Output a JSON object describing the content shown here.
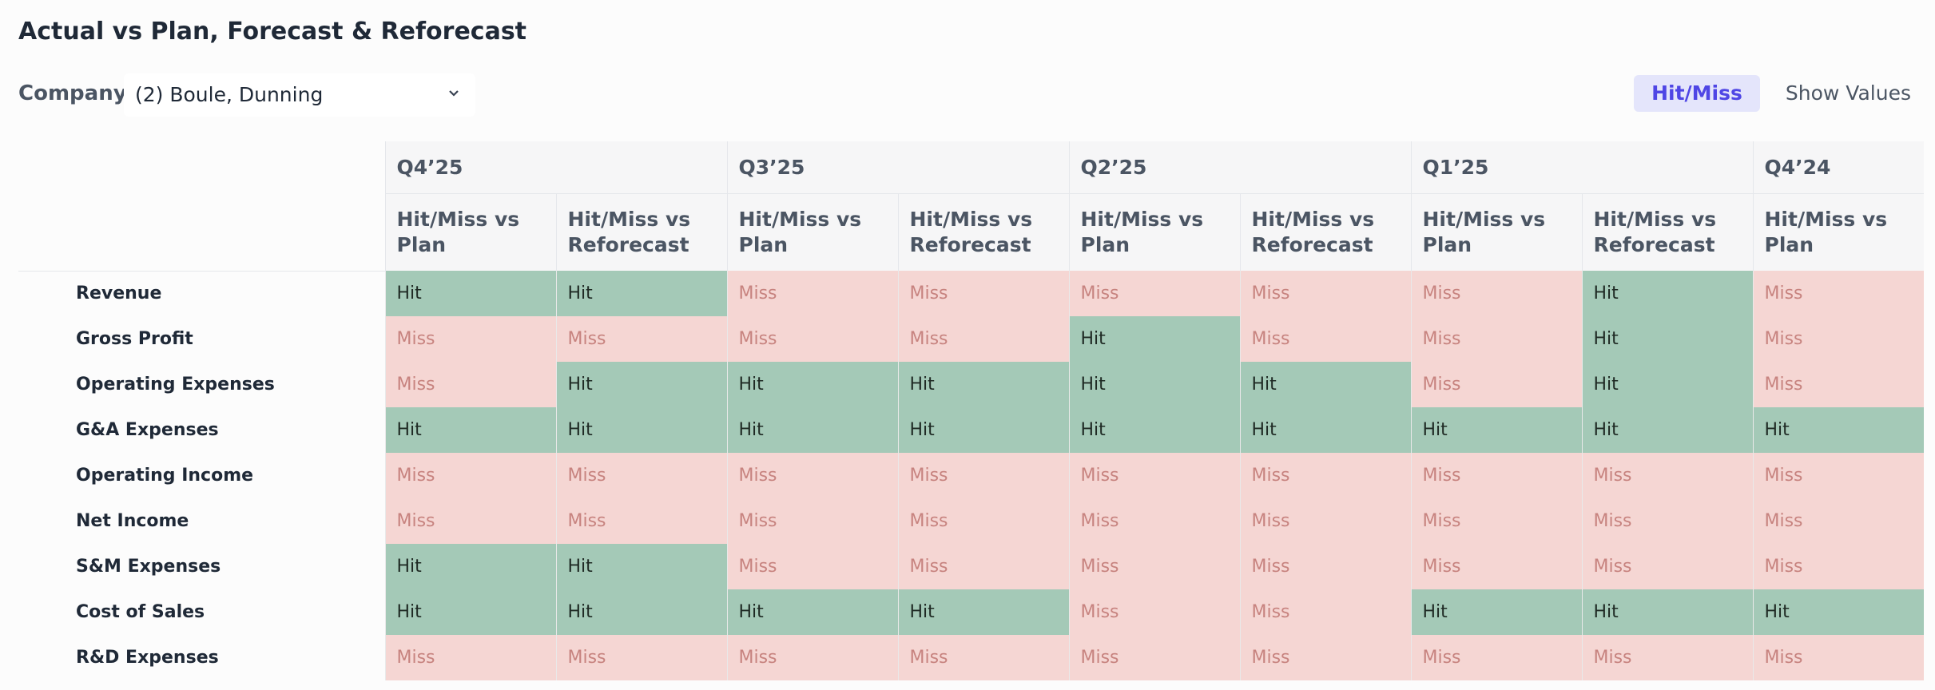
{
  "header": {
    "title": "Actual vs Plan, Forecast & Reforecast"
  },
  "filter": {
    "label": "Company",
    "value": "(2) Boule, Dunning"
  },
  "toggle": {
    "options": [
      "Hit/Miss",
      "Show Values"
    ],
    "active": 0
  },
  "table": {
    "periods": [
      {
        "label": "Q4’25",
        "columns": [
          "Hit/Miss vs Plan",
          "Hit/Miss vs Reforecast"
        ]
      },
      {
        "label": "Q3’25",
        "columns": [
          "Hit/Miss vs Plan",
          "Hit/Miss vs Reforecast"
        ]
      },
      {
        "label": "Q2’25",
        "columns": [
          "Hit/Miss vs Plan",
          "Hit/Miss vs Reforecast"
        ]
      },
      {
        "label": "Q1’25",
        "columns": [
          "Hit/Miss vs Plan",
          "Hit/Miss vs Reforecast"
        ]
      },
      {
        "label": "Q4’24",
        "columns": [
          "Hit/Miss vs Plan"
        ]
      }
    ],
    "rows": [
      {
        "label": "Revenue",
        "cells": [
          "Hit",
          "Hit",
          "Miss",
          "Miss",
          "Miss",
          "Miss",
          "Miss",
          "Hit",
          "Miss"
        ]
      },
      {
        "label": "Gross Profit",
        "cells": [
          "Miss",
          "Miss",
          "Miss",
          "Miss",
          "Hit",
          "Miss",
          "Miss",
          "Hit",
          "Miss"
        ]
      },
      {
        "label": "Operating Expenses",
        "cells": [
          "Miss",
          "Hit",
          "Hit",
          "Hit",
          "Hit",
          "Hit",
          "Miss",
          "Hit",
          "Miss"
        ]
      },
      {
        "label": "G&A Expenses",
        "cells": [
          "Hit",
          "Hit",
          "Hit",
          "Hit",
          "Hit",
          "Hit",
          "Hit",
          "Hit",
          "Hit"
        ]
      },
      {
        "label": "Operating Income",
        "cells": [
          "Miss",
          "Miss",
          "Miss",
          "Miss",
          "Miss",
          "Miss",
          "Miss",
          "Miss",
          "Miss"
        ]
      },
      {
        "label": "Net Income",
        "cells": [
          "Miss",
          "Miss",
          "Miss",
          "Miss",
          "Miss",
          "Miss",
          "Miss",
          "Miss",
          "Miss"
        ]
      },
      {
        "label": "S&M Expenses",
        "cells": [
          "Hit",
          "Hit",
          "Miss",
          "Miss",
          "Miss",
          "Miss",
          "Miss",
          "Miss",
          "Miss"
        ]
      },
      {
        "label": "Cost of Sales",
        "cells": [
          "Hit",
          "Hit",
          "Hit",
          "Hit",
          "Miss",
          "Miss",
          "Hit",
          "Hit",
          "Hit"
        ]
      },
      {
        "label": "R&D Expenses",
        "cells": [
          "Miss",
          "Miss",
          "Miss",
          "Miss",
          "Miss",
          "Miss",
          "Miss",
          "Miss",
          "Miss"
        ]
      }
    ]
  }
}
